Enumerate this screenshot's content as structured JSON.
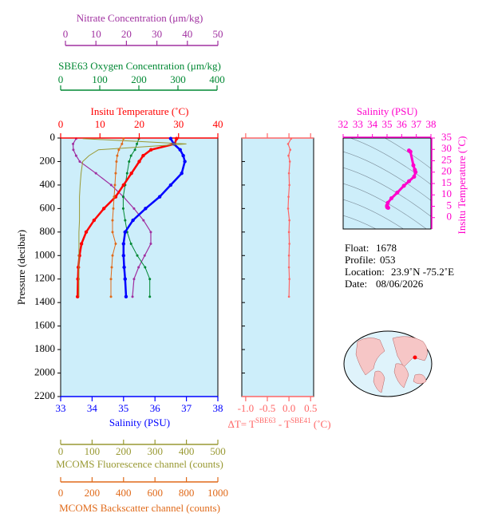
{
  "chart_data": [
    {
      "type": "profile",
      "ylabel": "Pressure (decibar)",
      "ylim": [
        0,
        2200
      ],
      "yticks": [
        0,
        200,
        400,
        600,
        800,
        1000,
        1200,
        1400,
        1600,
        1800,
        2000,
        2200
      ],
      "y": [
        5,
        50,
        100,
        150,
        200,
        300,
        400,
        500,
        600,
        700,
        800,
        900,
        1000,
        1100,
        1200,
        1350
      ],
      "background": "#cdeefa",
      "axes": [
        {
          "side": "top",
          "title": "Nitrate Concentration (μm/kg)",
          "color": "#a030a0",
          "xlim": [
            0,
            50
          ],
          "xticks": [
            0,
            10,
            20,
            30,
            40,
            50
          ],
          "values": [
            3.5,
            2.5,
            2.6,
            3.5,
            4.7,
            10,
            15,
            19,
            22.5,
            25.6,
            28,
            28,
            26,
            24,
            22.5,
            22
          ]
        },
        {
          "side": "top",
          "title": "SBE63 Oxygen Concentration (μm/kg)",
          "color": "#008833",
          "xlim": [
            0,
            400
          ],
          "xticks": [
            0,
            100,
            200,
            300,
            400
          ],
          "values": [
            200,
            195,
            190,
            180,
            175,
            170,
            165,
            160,
            160,
            165,
            170,
            180,
            196,
            216,
            228,
            228
          ]
        },
        {
          "side": "top",
          "title": "Insitu Temperature (˚C)",
          "color": "#ff0000",
          "xlim": [
            0,
            40
          ],
          "xticks": [
            0,
            10,
            20,
            30,
            40
          ],
          "values": [
            29.5,
            29.0,
            23.0,
            21.0,
            20.0,
            18.0,
            16.0,
            14.0,
            11.0,
            8.5,
            6.5,
            5.3,
            4.8,
            4.5,
            4.4,
            4.3
          ]
        },
        {
          "side": "bottom",
          "title": "Salinity (PSU)",
          "color": "#0000ff",
          "xlim": [
            33,
            38
          ],
          "xticks": [
            33,
            34,
            35,
            36,
            37,
            38
          ],
          "values": [
            36.5,
            36.6,
            36.8,
            36.9,
            36.95,
            36.85,
            36.5,
            36.15,
            35.7,
            35.3,
            35.05,
            35.0,
            35.0,
            35.02,
            35.05,
            35.08
          ]
        },
        {
          "side": "bottom",
          "title": "MCOMS Fluorescence channel (counts)",
          "color": "#999933",
          "xlim": [
            0,
            500
          ],
          "xticks": [
            0,
            100,
            200,
            300,
            400,
            500
          ],
          "values": [
            70,
            400,
            120,
            90,
            70,
            65,
            62,
            60,
            60,
            60,
            58,
            58,
            58,
            58,
            58,
            58
          ]
        },
        {
          "side": "bottom",
          "title": "MCOMS Backscatter channel (counts)",
          "color": "#e06a1a",
          "xlim": [
            0,
            1000
          ],
          "xticks": [
            0,
            200,
            400,
            600,
            800,
            1000
          ],
          "values": [
            400,
            390,
            370,
            360,
            355,
            350,
            345,
            340,
            335,
            330,
            330,
            350,
            330,
            325,
            320,
            320
          ]
        }
      ]
    },
    {
      "type": "profile-diff",
      "title_parts": [
        "ΔT= T",
        "SBE63",
        " - T",
        "SBE41",
        " (˚C)"
      ],
      "color": "#ff6666",
      "xlim": [
        -1.09,
        0.57
      ],
      "xticks": [
        {
          "value": -1,
          "label": "-1.0"
        },
        {
          "value": -0.5,
          "label": "-0.5"
        },
        {
          "value": 0,
          "label": "0.0"
        },
        0.5
      ],
      "values": [
        0.05,
        -0.02,
        0.03,
        -0.01,
        0.02,
        0.0,
        0.01,
        -0.01,
        -0.02,
        0.01,
        0.0,
        0.01,
        0.0,
        0.0,
        0.01,
        0.0
      ]
    },
    {
      "type": "ts",
      "title": "Salinity (PSU)",
      "ylabel": "Insitu Temperature (˚C)",
      "color": "#ff00cc",
      "xlim": [
        32,
        38
      ],
      "xticks": [
        32,
        33,
        34,
        35,
        36,
        37,
        38
      ],
      "ylim": [
        -5,
        35
      ],
      "yticks": [
        0,
        5,
        10,
        15,
        20,
        25,
        30,
        35
      ]
    }
  ],
  "info": [
    {
      "label": "Float:",
      "value": "1678"
    },
    {
      "label": "Profile:",
      "value": "053"
    },
    {
      "label": "Location:",
      "value": "23.9˚N  -75.2˚E"
    },
    {
      "label": "Date:",
      "value": "08/06/2026"
    }
  ]
}
